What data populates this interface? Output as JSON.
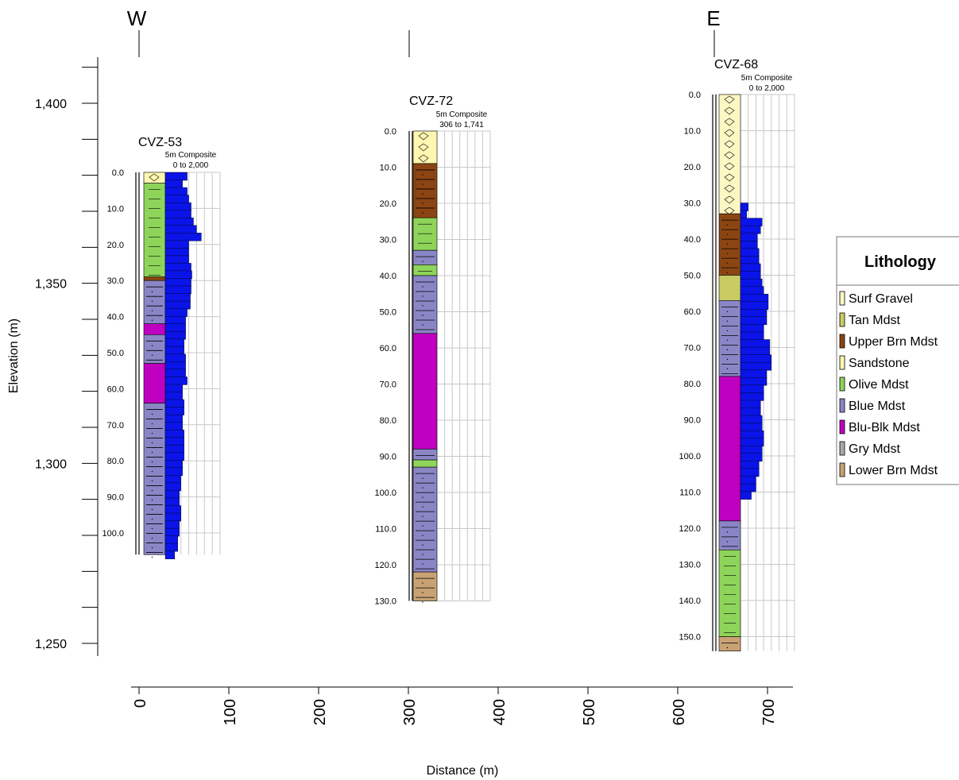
{
  "directions": {
    "west": "W",
    "east": "E"
  },
  "elevation_axis": {
    "title": "Elevation (m)",
    "ticks": [
      {
        "label": "1,400",
        "value": 1400
      },
      {
        "label": "1,350",
        "value": 1350
      },
      {
        "label": "1,300",
        "value": 1300
      },
      {
        "label": "1,250",
        "value": 1250
      }
    ],
    "range": [
      1250,
      1400
    ]
  },
  "distance_axis": {
    "title": "Distance (m)",
    "ticks": [
      "0",
      "100",
      "200",
      "300",
      "400",
      "500",
      "600",
      "700"
    ],
    "range": [
      0,
      700
    ]
  },
  "wells": [
    {
      "name": "CVZ-53",
      "composite": "5m Composite",
      "range_label": "0 to 2,000",
      "distance": 0,
      "depth_ticks": [
        "0.0",
        "10.0",
        "20.0",
        "30.0",
        "40.0",
        "50.0",
        "60.0",
        "70.0",
        "80.0",
        "90.0",
        "100.0"
      ],
      "max_depth": 106,
      "lithology": [
        {
          "from": 0,
          "to": 3,
          "unit": "Sandstone"
        },
        {
          "from": 3,
          "to": 29,
          "unit": "Olive Mdst"
        },
        {
          "from": 29,
          "to": 30,
          "unit": "Upper Brn Mdst"
        },
        {
          "from": 30,
          "to": 42,
          "unit": "Blue Mdst"
        },
        {
          "from": 42,
          "to": 45,
          "unit": "Blu-Blk Mdst"
        },
        {
          "from": 45,
          "to": 53,
          "unit": "Blue Mdst"
        },
        {
          "from": 53,
          "to": 64,
          "unit": "Blu-Blk Mdst"
        },
        {
          "from": 64,
          "to": 106,
          "unit": "Blue Mdst"
        }
      ],
      "assay": [
        28,
        22,
        28,
        30,
        33,
        33,
        36,
        40,
        46,
        30,
        30,
        30,
        33,
        34,
        33,
        33,
        32,
        32,
        28,
        26,
        26,
        26,
        24,
        24,
        26,
        26,
        26,
        28,
        22,
        22,
        24,
        24,
        22,
        22,
        24,
        24,
        24,
        24,
        22,
        22,
        20,
        20,
        18,
        18,
        20,
        20,
        18,
        18,
        16,
        16,
        12
      ]
    },
    {
      "name": "CVZ-72",
      "composite": "5m Composite",
      "range_label": "306 to 1,741",
      "distance": 300,
      "depth_ticks": [
        "0.0",
        "10.0",
        "20.0",
        "30.0",
        "40.0",
        "50.0",
        "60.0",
        "70.0",
        "80.0",
        "90.0",
        "100.0",
        "110.0",
        "120.0",
        "130.0"
      ],
      "max_depth": 130,
      "lithology": [
        {
          "from": 0,
          "to": 9,
          "unit": "Sandstone"
        },
        {
          "from": 9,
          "to": 24,
          "unit": "Upper Brn Mdst"
        },
        {
          "from": 24,
          "to": 33,
          "unit": "Olive Mdst"
        },
        {
          "from": 33,
          "to": 37,
          "unit": "Blue Mdst"
        },
        {
          "from": 37,
          "to": 40,
          "unit": "Olive Mdst"
        },
        {
          "from": 40,
          "to": 56,
          "unit": "Blue Mdst"
        },
        {
          "from": 56,
          "to": 88,
          "unit": "Blu-Blk Mdst"
        },
        {
          "from": 88,
          "to": 91,
          "unit": "Blue Mdst"
        },
        {
          "from": 91,
          "to": 93,
          "unit": "Olive Mdst"
        },
        {
          "from": 93,
          "to": 122,
          "unit": "Blue Mdst"
        },
        {
          "from": 122,
          "to": 130,
          "unit": "Lower Brn Mdst"
        }
      ],
      "assay": []
    },
    {
      "name": "CVZ-68",
      "composite": "5m Composite",
      "range_label": "0 to 2,000",
      "distance": 650,
      "depth_ticks": [
        "0.0",
        "10.0",
        "20.0",
        "30.0",
        "40.0",
        "50.0",
        "60.0",
        "70.0",
        "80.0",
        "90.0",
        "100.0",
        "110.0",
        "120.0",
        "130.0",
        "140.0",
        "150.0"
      ],
      "max_depth": 154,
      "lithology": [
        {
          "from": 0,
          "to": 33,
          "unit": "Surf Gravel"
        },
        {
          "from": 33,
          "to": 50,
          "unit": "Upper Brn Mdst"
        },
        {
          "from": 50,
          "to": 57,
          "unit": "Tan Mdst"
        },
        {
          "from": 57,
          "to": 78,
          "unit": "Blue Mdst"
        },
        {
          "from": 78,
          "to": 118,
          "unit": "Blu-Blk Mdst"
        },
        {
          "from": 118,
          "to": 126,
          "unit": "Blue Mdst"
        },
        {
          "from": 126,
          "to": 150,
          "unit": "Olive Mdst"
        },
        {
          "from": 150,
          "to": 154,
          "unit": "Lower Brn Mdst"
        }
      ],
      "assay_start": 30,
      "assay": [
        10,
        8,
        28,
        26,
        22,
        22,
        24,
        24,
        26,
        26,
        28,
        30,
        36,
        36,
        34,
        34,
        30,
        30,
        38,
        38,
        40,
        40,
        34,
        34,
        30,
        30,
        26,
        26,
        28,
        28,
        30,
        30,
        28,
        28,
        24,
        24,
        20,
        20,
        14
      ]
    }
  ],
  "legend": {
    "title": "Lithology",
    "items": [
      {
        "label": "Surf Gravel",
        "color": "#fdf7c3"
      },
      {
        "label": "Tan Mdst",
        "color": "#c9cc63"
      },
      {
        "label": "Upper Brn Mdst",
        "color": "#8b4513"
      },
      {
        "label": "Sandstone",
        "color": "#fff7b0"
      },
      {
        "label": "Olive Mdst",
        "color": "#8ed45a"
      },
      {
        "label": "Blue Mdst",
        "color": "#8a86c6"
      },
      {
        "label": "Blu-Blk Mdst",
        "color": "#c000c0"
      },
      {
        "label": "Gry Mdst",
        "color": "#a8a8a8"
      },
      {
        "label": "Lower Brn Mdst",
        "color": "#c9a274"
      }
    ]
  },
  "colors": {
    "assay": "#0a14e8",
    "grid": "#c8c8c8",
    "axis": "#000000"
  }
}
